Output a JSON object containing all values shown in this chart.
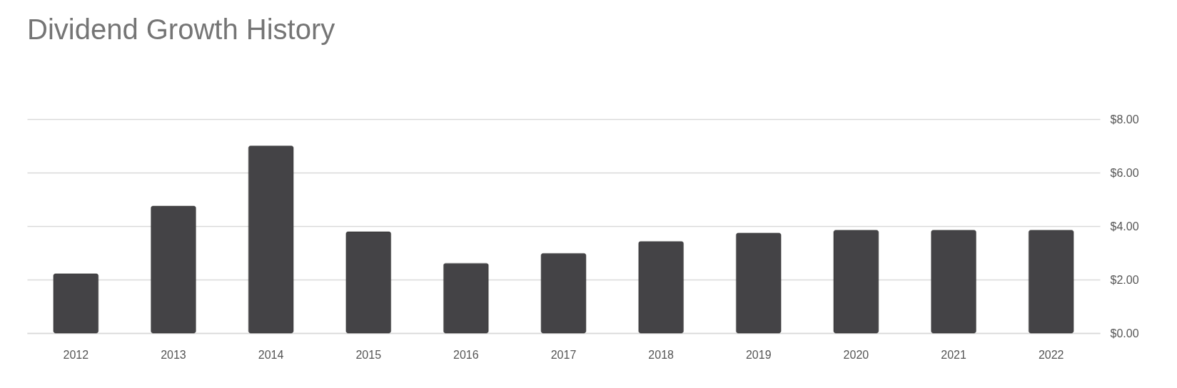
{
  "chart_data": {
    "type": "bar",
    "title": "Dividend Growth History",
    "categories": [
      "2012",
      "2013",
      "2014",
      "2015",
      "2016",
      "2017",
      "2018",
      "2019",
      "2020",
      "2021",
      "2022"
    ],
    "values": [
      2.22,
      4.75,
      7.0,
      3.79,
      2.61,
      2.98,
      3.43,
      3.74,
      3.85,
      3.85,
      3.85
    ],
    "color": "#444346",
    "ylim": [
      0,
      8
    ],
    "yticks": [
      {
        "value": 0,
        "label": "$0.00"
      },
      {
        "value": 2,
        "label": "$2.00"
      },
      {
        "value": 4,
        "label": "$4.00"
      },
      {
        "value": 6,
        "label": "$6.00"
      },
      {
        "value": 8,
        "label": "$8.00"
      }
    ],
    "grid": "y"
  }
}
